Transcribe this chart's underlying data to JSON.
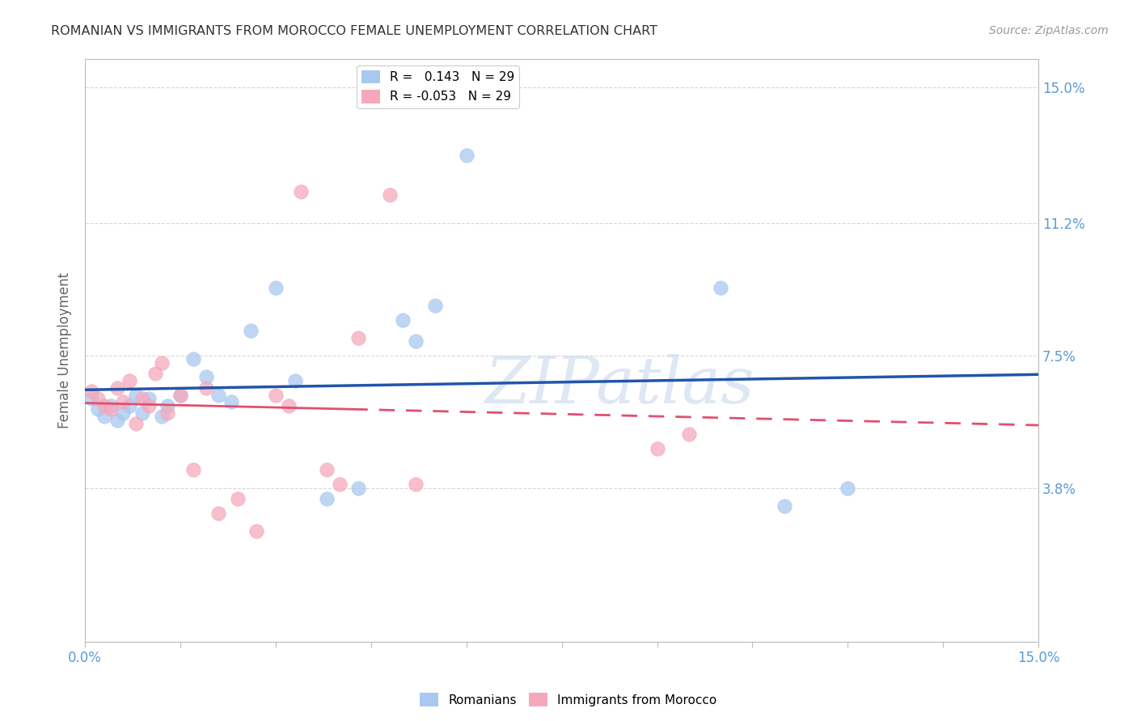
{
  "title": "ROMANIAN VS IMMIGRANTS FROM MOROCCO FEMALE UNEMPLOYMENT CORRELATION CHART",
  "source": "Source: ZipAtlas.com",
  "ylabel": "Female Unemployment",
  "right_yticks": [
    0.038,
    0.075,
    0.112,
    0.15
  ],
  "right_yticklabels": [
    "3.8%",
    "7.5%",
    "11.2%",
    "15.0%"
  ],
  "xlim": [
    0.0,
    0.15
  ],
  "ylim": [
    -0.005,
    0.158
  ],
  "r_romanian": 0.143,
  "n_romanian": 29,
  "r_morocco": -0.053,
  "n_morocco": 29,
  "color_romanian": "#A8C8F0",
  "color_morocco": "#F5A8BC",
  "color_trendline_romanian": "#2255AA",
  "color_trendline_morocco": "#E05070",
  "romanians_x": [
    0.001,
    0.002,
    0.003,
    0.004,
    0.005,
    0.006,
    0.007,
    0.008,
    0.009,
    0.01,
    0.012,
    0.013,
    0.015,
    0.017,
    0.019,
    0.021,
    0.023,
    0.026,
    0.03,
    0.033,
    0.038,
    0.043,
    0.05,
    0.052,
    0.055,
    0.06,
    0.1,
    0.11,
    0.12
  ],
  "romanians_y": [
    0.063,
    0.06,
    0.058,
    0.061,
    0.057,
    0.059,
    0.061,
    0.064,
    0.059,
    0.063,
    0.058,
    0.061,
    0.064,
    0.074,
    0.069,
    0.064,
    0.062,
    0.082,
    0.094,
    0.068,
    0.035,
    0.038,
    0.085,
    0.079,
    0.089,
    0.131,
    0.094,
    0.033,
    0.038
  ],
  "morocco_x": [
    0.001,
    0.002,
    0.003,
    0.004,
    0.005,
    0.006,
    0.007,
    0.008,
    0.009,
    0.01,
    0.011,
    0.012,
    0.013,
    0.015,
    0.017,
    0.019,
    0.021,
    0.024,
    0.027,
    0.03,
    0.032,
    0.034,
    0.038,
    0.04,
    0.043,
    0.048,
    0.052,
    0.09,
    0.095
  ],
  "morocco_y": [
    0.065,
    0.063,
    0.061,
    0.06,
    0.066,
    0.062,
    0.068,
    0.056,
    0.063,
    0.061,
    0.07,
    0.073,
    0.059,
    0.064,
    0.043,
    0.066,
    0.031,
    0.035,
    0.026,
    0.064,
    0.061,
    0.121,
    0.043,
    0.039,
    0.08,
    0.12,
    0.039,
    0.049,
    0.053
  ],
  "watermark": "ZIPatlas",
  "grid_color": "#D8D8D8",
  "background_color": "#FFFFFF",
  "title_color": "#333333",
  "tick_label_color": "#5B9BD5",
  "axis_color": "#BBBBBB"
}
